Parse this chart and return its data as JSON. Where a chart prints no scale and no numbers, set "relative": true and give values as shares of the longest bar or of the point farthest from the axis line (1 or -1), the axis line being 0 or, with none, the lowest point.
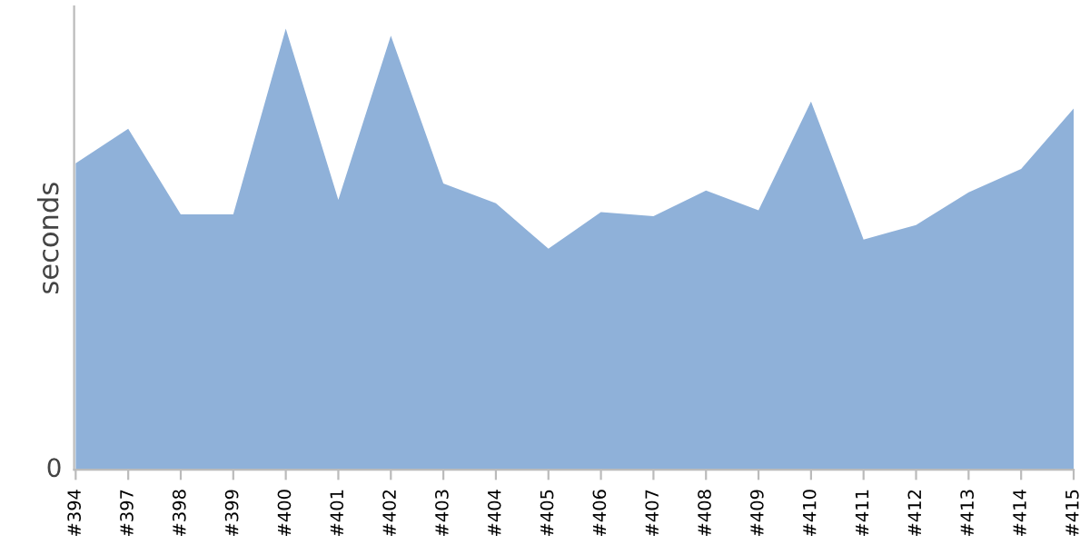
{
  "chart_data": {
    "type": "area",
    "ylabel": "seconds",
    "relative": true,
    "grid": false,
    "legend": false,
    "categories": [
      "#394",
      "#397",
      "#398",
      "#399",
      "#400",
      "#401",
      "#402",
      "#403",
      "#404",
      "#405",
      "#406",
      "#407",
      "#408",
      "#409",
      "#410",
      "#411",
      "#412",
      "#413",
      "#414",
      "#415"
    ],
    "series": [
      {
        "color": "#8fb1d9",
        "values": [
          0.695,
          0.773,
          0.579,
          0.579,
          1,
          0.612,
          0.984,
          0.649,
          0.604,
          0.501,
          0.584,
          0.575,
          0.633,
          0.588,
          0.835,
          0.522,
          0.555,
          0.629,
          0.682,
          0.819
        ]
      }
    ],
    "annotations": [
      "0"
    ]
  }
}
